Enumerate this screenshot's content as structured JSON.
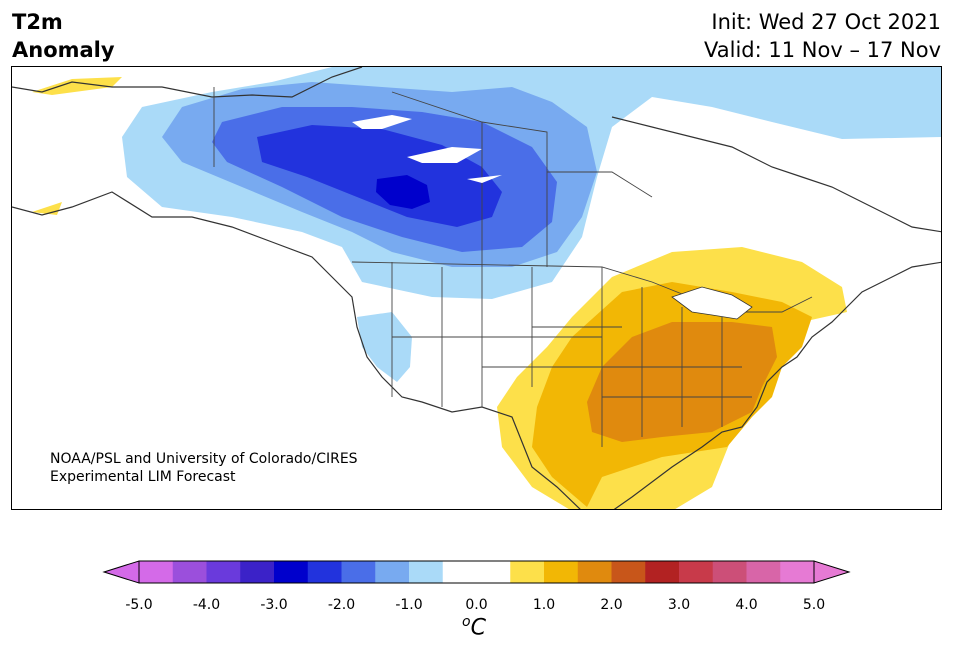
{
  "header": {
    "title_line1": "T2m",
    "title_line2": "Anomaly",
    "init": "Init: Wed 27 Oct 2021",
    "valid": "Valid: 11 Nov – 17 Nov"
  },
  "credit": {
    "line1": "NOAA/PSL and University of Colorado/CIRES",
    "line2": "Experimental LIM Forecast"
  },
  "colorbar": {
    "ticks": [
      "-5.0",
      "-4.0",
      "-3.0",
      "-2.0",
      "-1.0",
      "0.0",
      "1.0",
      "2.0",
      "3.0",
      "4.0",
      "5.0"
    ],
    "unit_prefix": "o",
    "unit": "C",
    "colors": [
      "#d46ae8",
      "#9b4fdc",
      "#6a3adc",
      "#3b22c8",
      "#0000cc",
      "#2233dd",
      "#4a6ee8",
      "#78aaf0",
      "#aadaf8",
      "#ffffff",
      "#ffffff",
      "#fde04a",
      "#f2b705",
      "#e08a0e",
      "#c8561a",
      "#b22222",
      "#c83a4a",
      "#cc4f78",
      "#d865a8",
      "#e67ad4"
    ],
    "under_color": "#d46ae8",
    "over_color": "#e67ad4"
  },
  "map": {
    "anomaly_colors": {
      "cold_1": "#aadaf8",
      "cold_2": "#78aaf0",
      "cold_3": "#4a6ee8",
      "cold_4": "#2233dd",
      "warm_1": "#fde04a",
      "warm_2": "#f2b705",
      "warm_3": "#e08a0e"
    }
  }
}
